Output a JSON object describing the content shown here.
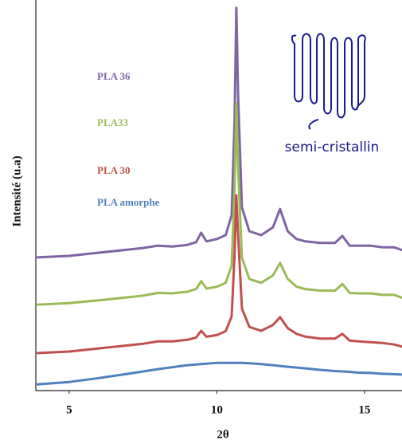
{
  "chart_data": {
    "type": "line",
    "xlabel": "2θ",
    "ylabel": "Intensité (u.a)",
    "annotation": "semi-cristallin",
    "x": [
      3.9,
      5,
      6,
      7,
      7.5,
      8,
      8.5,
      9,
      9.3,
      9.47,
      9.65,
      10,
      10.3,
      10.5,
      10.6,
      10.66,
      10.72,
      10.85,
      11.1,
      11.5,
      11.9,
      12.14,
      12.4,
      12.7,
      13,
      13.5,
      14,
      14.25,
      14.5,
      14.8,
      15.2,
      15.6,
      16,
      16.3
    ],
    "series": [
      {
        "name": "PLA 36",
        "color": "#8064a2",
        "values": [
          34.1,
          34.5,
          35.3,
          36.1,
          36.5,
          37.1,
          36.9,
          37.3,
          38.0,
          40.4,
          38.2,
          38.8,
          39.8,
          44.9,
          69.4,
          98,
          75.5,
          46.9,
          40.8,
          39.8,
          41.8,
          46.5,
          40.8,
          38.8,
          38.2,
          37.8,
          37.8,
          39.6,
          37.1,
          37.1,
          37.1,
          36.7,
          36.7,
          35.9
        ]
      },
      {
        "name": "PLA33",
        "color": "#9bbb59",
        "values": [
          22.0,
          22.4,
          23.1,
          23.9,
          24.3,
          25.0,
          24.9,
          25.3,
          26.0,
          28.0,
          26.1,
          26.6,
          27.6,
          32,
          52,
          73.5,
          57,
          34,
          28.6,
          27.6,
          29.5,
          32.7,
          28.6,
          26.6,
          26,
          25.6,
          25.6,
          27.3,
          25.0,
          24.9,
          24.9,
          24.5,
          24.5,
          23.7
        ]
      },
      {
        "name": "PLA 30",
        "color": "#c0504d",
        "values": [
          9.6,
          10,
          10.8,
          11.6,
          12,
          12.6,
          12.6,
          13,
          13.6,
          15.3,
          13.8,
          14.2,
          15.2,
          19,
          35,
          50,
          40,
          21,
          16.3,
          15.3,
          16.8,
          18.8,
          16,
          14.5,
          13.8,
          13.3,
          13.3,
          14.5,
          12.8,
          12.6,
          12.4,
          12.2,
          11.8,
          11.2
        ]
      },
      {
        "name": "PLA amorphe",
        "color": "#4f81bd",
        "values": [
          1.6,
          2.2,
          3.2,
          4.3,
          4.9,
          5.5,
          6.0,
          6.5,
          6.7,
          6.8,
          6.9,
          7.1,
          7.1,
          7.1,
          7.1,
          7.1,
          7.1,
          7.1,
          7.0,
          6.8,
          6.5,
          6.3,
          6.1,
          5.9,
          5.7,
          5.3,
          5.0,
          4.9,
          4.8,
          4.6,
          4.5,
          4.3,
          4.2,
          4.1
        ]
      }
    ],
    "xlim": [
      3.87,
      16.27
    ],
    "xticks": [
      5,
      10,
      15
    ],
    "ylim": [
      0,
      100
    ]
  }
}
